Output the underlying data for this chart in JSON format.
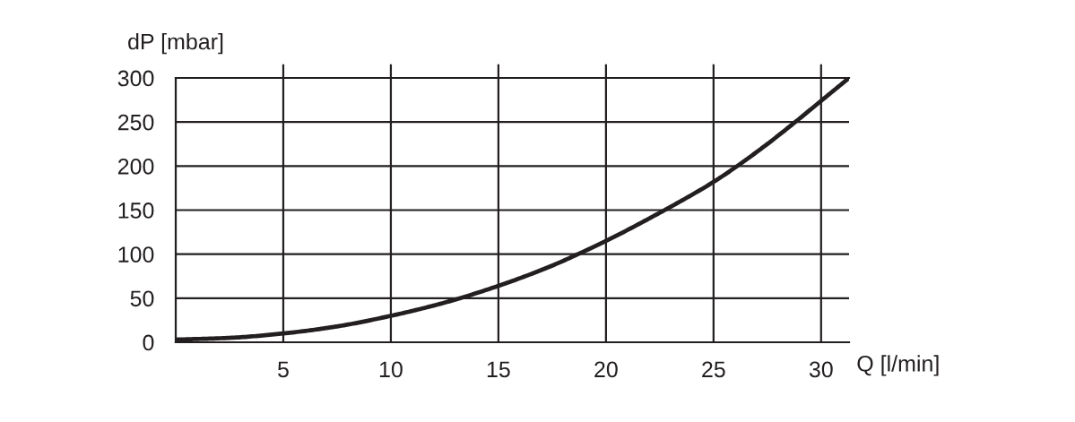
{
  "chart_data": {
    "type": "line",
    "xlabel": "Q [l/min]",
    "ylabel": "dP [mbar]",
    "x": [
      0,
      2.5,
      5,
      7.5,
      10,
      12.5,
      15,
      17.5,
      18.7,
      20,
      22.5,
      25,
      26.1,
      27.5,
      28.8,
      30,
      31.3
    ],
    "series": [
      {
        "color": "#231f20",
        "values": [
          3,
          5,
          10,
          18,
          30,
          45,
          64,
          87,
          100,
          115,
          147,
          182,
          200,
          225,
          250,
          274,
          300
        ]
      }
    ],
    "xlim": [
      0,
      31.3
    ],
    "ylim": [
      0,
      300
    ],
    "xticks": [
      5,
      10,
      15,
      20,
      25,
      30
    ],
    "yticks": [
      0,
      50,
      100,
      150,
      200,
      250,
      300
    ],
    "grid": true,
    "line_style": "solid"
  }
}
